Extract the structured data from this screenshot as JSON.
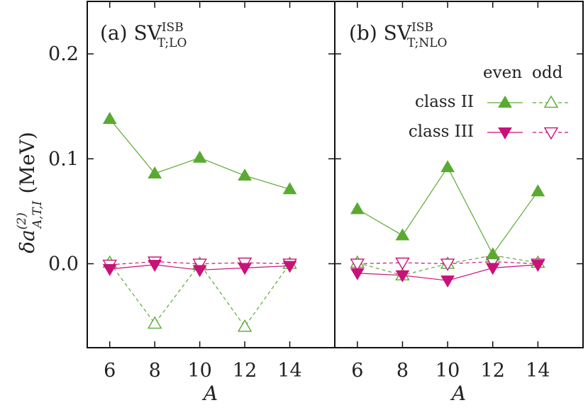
{
  "chart_data": {
    "type": "line",
    "y_label_main": "δa",
    "y_label_sup": "(2)",
    "y_label_sub": "A,T,I",
    "y_label_unit": "(MeV)",
    "x_label": "A",
    "ylim": [
      -0.08,
      0.25
    ],
    "yticks": [
      0.0,
      0.1,
      0.2
    ],
    "ytick_labels": [
      "0.0",
      "0.1",
      "0.2"
    ],
    "xlim": [
      5,
      16
    ],
    "xticks": [
      6,
      8,
      10,
      12,
      14
    ],
    "xtick_labels": [
      "6",
      "8",
      "10",
      "12",
      "14"
    ],
    "colors": {
      "class_II": "#5aaa32",
      "class_III": "#c8127a"
    },
    "legend": {
      "header_even": "even",
      "header_odd": "odd",
      "row_II": "class II",
      "row_III": "class III"
    },
    "panels": [
      {
        "label": "(a) SV",
        "label_sup": "ISB",
        "label_sub": "T;LO",
        "series": [
          {
            "name": "class II even",
            "x": [
              6,
              8,
              10,
              12,
              14
            ],
            "y": [
              0.138,
              0.086,
              0.101,
              0.084,
              0.071
            ]
          },
          {
            "name": "class II odd",
            "x": [
              6,
              8,
              10,
              12,
              14
            ],
            "y": [
              0.001,
              -0.057,
              0.0,
              -0.06,
              0.0
            ]
          },
          {
            "name": "class III even",
            "x": [
              6,
              8,
              10,
              12,
              14
            ],
            "y": [
              -0.005,
              -0.001,
              -0.006,
              -0.004,
              -0.002
            ]
          },
          {
            "name": "class III odd",
            "x": [
              6,
              8,
              10,
              12,
              14
            ],
            "y": [
              -0.001,
              0.002,
              0.0,
              0.001,
              0.0
            ]
          }
        ]
      },
      {
        "label": "(b) SV",
        "label_sup": "ISB",
        "label_sub": "T;NLO",
        "series": [
          {
            "name": "class II even",
            "x": [
              6,
              8,
              10,
              12,
              14
            ],
            "y": [
              0.052,
              0.027,
              0.092,
              0.009,
              0.069
            ]
          },
          {
            "name": "class II odd",
            "x": [
              6,
              8,
              10,
              12,
              14
            ],
            "y": [
              0.001,
              -0.011,
              0.0,
              0.008,
              0.001
            ]
          },
          {
            "name": "class III even",
            "x": [
              6,
              8,
              10,
              12,
              14
            ],
            "y": [
              -0.009,
              -0.011,
              -0.016,
              -0.004,
              -0.001
            ]
          },
          {
            "name": "class III odd",
            "x": [
              6,
              8,
              10,
              12,
              14
            ],
            "y": [
              0.0,
              0.001,
              0.0,
              0.002,
              0.0
            ]
          }
        ]
      }
    ]
  }
}
